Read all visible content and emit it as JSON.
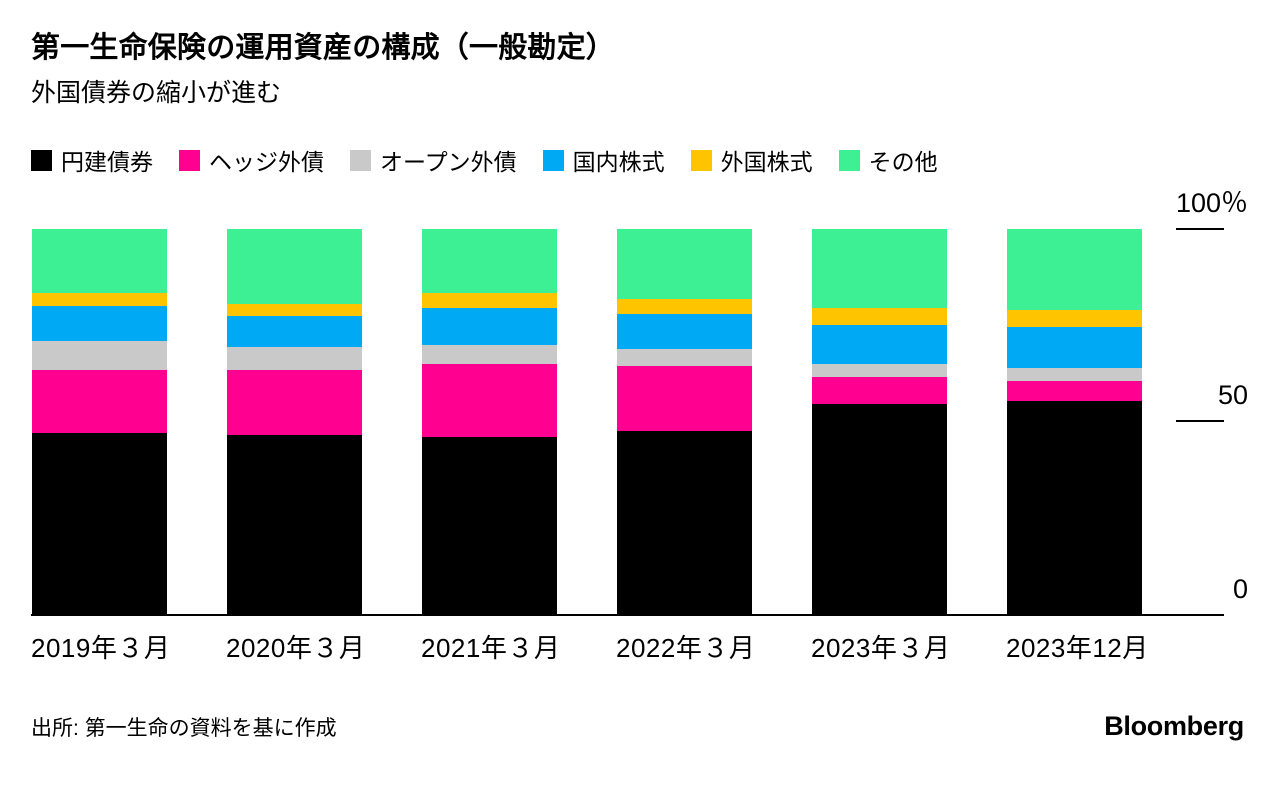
{
  "header": {
    "title": "第一生命保険の運用資産の構成（一般勘定）",
    "subtitle": "外国債券の縮小が進む"
  },
  "chart_data": {
    "type": "bar",
    "stacked": true,
    "orientation": "vertical",
    "categories": [
      "2019年３月",
      "2020年３月",
      "2021年３月",
      "2022年３月",
      "2023年３月",
      "2023年12月"
    ],
    "series": [
      {
        "name": "円建債券",
        "color": "#000000",
        "values": [
          47.0,
          46.5,
          46.0,
          47.5,
          54.5,
          55.5
        ]
      },
      {
        "name": "ヘッジ外債",
        "color": "#FF0090",
        "values": [
          16.5,
          17.0,
          19.0,
          17.0,
          7.0,
          5.0
        ]
      },
      {
        "name": "オープン外債",
        "color": "#C9C9C9",
        "values": [
          7.5,
          6.0,
          5.0,
          4.5,
          3.5,
          3.5
        ]
      },
      {
        "name": "国内株式",
        "color": "#00A9F4",
        "values": [
          9.0,
          8.0,
          9.5,
          9.0,
          10.0,
          10.5
        ]
      },
      {
        "name": "外国株式",
        "color": "#FFC400",
        "values": [
          3.5,
          3.0,
          4.0,
          4.0,
          4.5,
          4.5
        ]
      },
      {
        "name": "その他",
        "color": "#3DF094",
        "values": [
          16.5,
          19.5,
          16.5,
          18.0,
          20.5,
          21.0
        ]
      }
    ],
    "unit": "%",
    "ylim": [
      0,
      100
    ],
    "yticks": [
      "100％",
      "50",
      "0"
    ],
    "grid": false,
    "legend_position": "top"
  },
  "footer": {
    "source": "出所: 第一生命の資料を基に作成",
    "brand": "Bloomberg"
  }
}
